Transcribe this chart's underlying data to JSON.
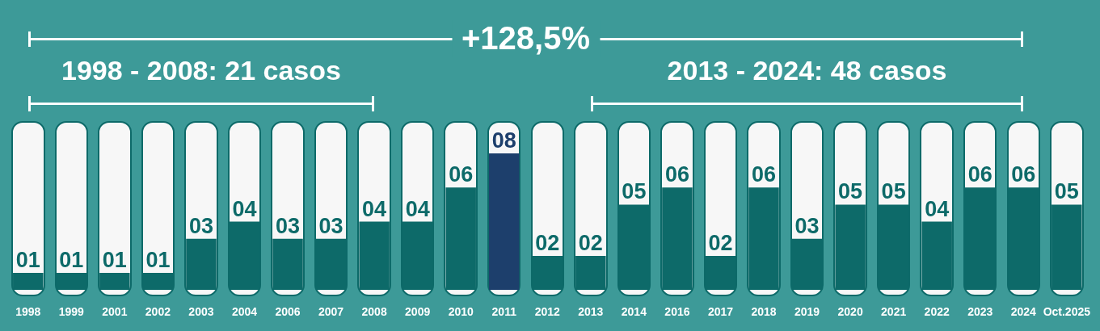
{
  "chart_data": {
    "type": "bar",
    "categories": [
      "1998",
      "1999",
      "2001",
      "2002",
      "2003",
      "2004",
      "2006",
      "2007",
      "2008",
      "2009",
      "2010",
      "2011",
      "2012",
      "2013",
      "2014",
      "2016",
      "2017",
      "2018",
      "2019",
      "2020",
      "2021",
      "2022",
      "2023",
      "2024",
      "Oct.2025"
    ],
    "values": [
      1,
      1,
      1,
      1,
      3,
      4,
      3,
      3,
      4,
      4,
      6,
      8,
      2,
      2,
      5,
      6,
      2,
      6,
      3,
      5,
      5,
      4,
      6,
      6,
      5
    ],
    "value_labels": [
      "01",
      "01",
      "01",
      "01",
      "03",
      "04",
      "03",
      "03",
      "04",
      "04",
      "06",
      "08",
      "02",
      "02",
      "05",
      "06",
      "02",
      "06",
      "03",
      "05",
      "05",
      "04",
      "06",
      "06",
      "05"
    ],
    "colors": [
      "#0d6a69",
      "#0d6a69",
      "#0d6a69",
      "#0d6a69",
      "#0d6a69",
      "#0d6a69",
      "#0d6a69",
      "#0d6a69",
      "#0d6a69",
      "#0d6a69",
      "#0d6a69",
      "#1d3f6c",
      "#0d6a69",
      "#0d6a69",
      "#0d6a69",
      "#0d6a69",
      "#0d6a69",
      "#0d6a69",
      "#0d6a69",
      "#0d6a69",
      "#0d6a69",
      "#0d6a69",
      "#0d6a69",
      "#0d6a69",
      "#0d6a69"
    ],
    "annotations": [
      "+128,5%",
      "1998 - 2008: 21 casos",
      "2013 - 2024: 48 casos"
    ],
    "legend": false,
    "grid": false,
    "tick_labels": "x"
  }
}
